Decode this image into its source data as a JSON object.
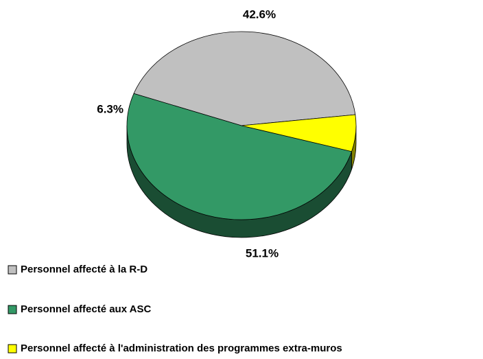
{
  "chart_data": {
    "type": "pie3d",
    "categories": [
      "Personnel affecté à la R-D",
      "Personnel affecté aux ASC",
      "Personnel affecté à l'administration des programmes extra-muros"
    ],
    "values": [
      42.6,
      51.1,
      6.3
    ],
    "value_labels": [
      "42.6%",
      "51.1%",
      "6.3%"
    ],
    "colors": [
      "#c0c0c0",
      "#339966",
      "#ffff00"
    ]
  }
}
